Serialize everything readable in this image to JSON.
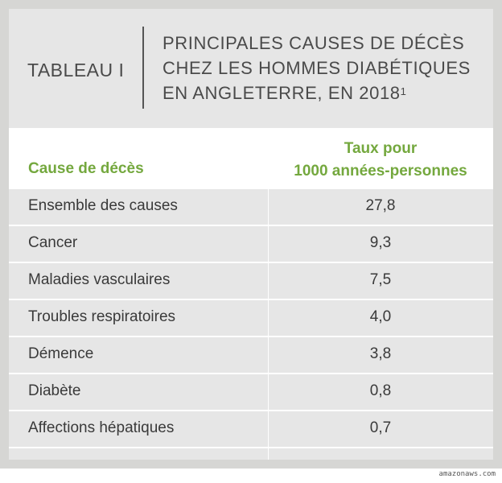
{
  "header": {
    "tag": "TABLEAU I",
    "title_lines": [
      "PRINCIPALES CAUSES DE DÉCÈS",
      "CHEZ LES HOMMES DIABÉTIQUES",
      "EN ANGLETERRE, EN 2018"
    ],
    "footnote_mark": "1"
  },
  "table": {
    "col_cause": "Cause de décès",
    "col_rate_line1": "Taux pour",
    "col_rate_line2": "1000 années-personnes",
    "rows": [
      {
        "cause": "Ensemble des causes",
        "rate": "27,8"
      },
      {
        "cause": "Cancer",
        "rate": "9,3"
      },
      {
        "cause": "Maladies vasculaires",
        "rate": "7,5"
      },
      {
        "cause": "Troubles respiratoires",
        "rate": "4,0"
      },
      {
        "cause": "Démence",
        "rate": "3,8"
      },
      {
        "cause": "Diabète",
        "rate": "0,8"
      },
      {
        "cause": "Affections hépatiques",
        "rate": "0,7"
      }
    ]
  },
  "watermark": "amazonaws.com",
  "colors": {
    "accent_green": "#74a83e",
    "card_gray": "#e6e6e6",
    "frame_gray": "#d6d6d4"
  }
}
